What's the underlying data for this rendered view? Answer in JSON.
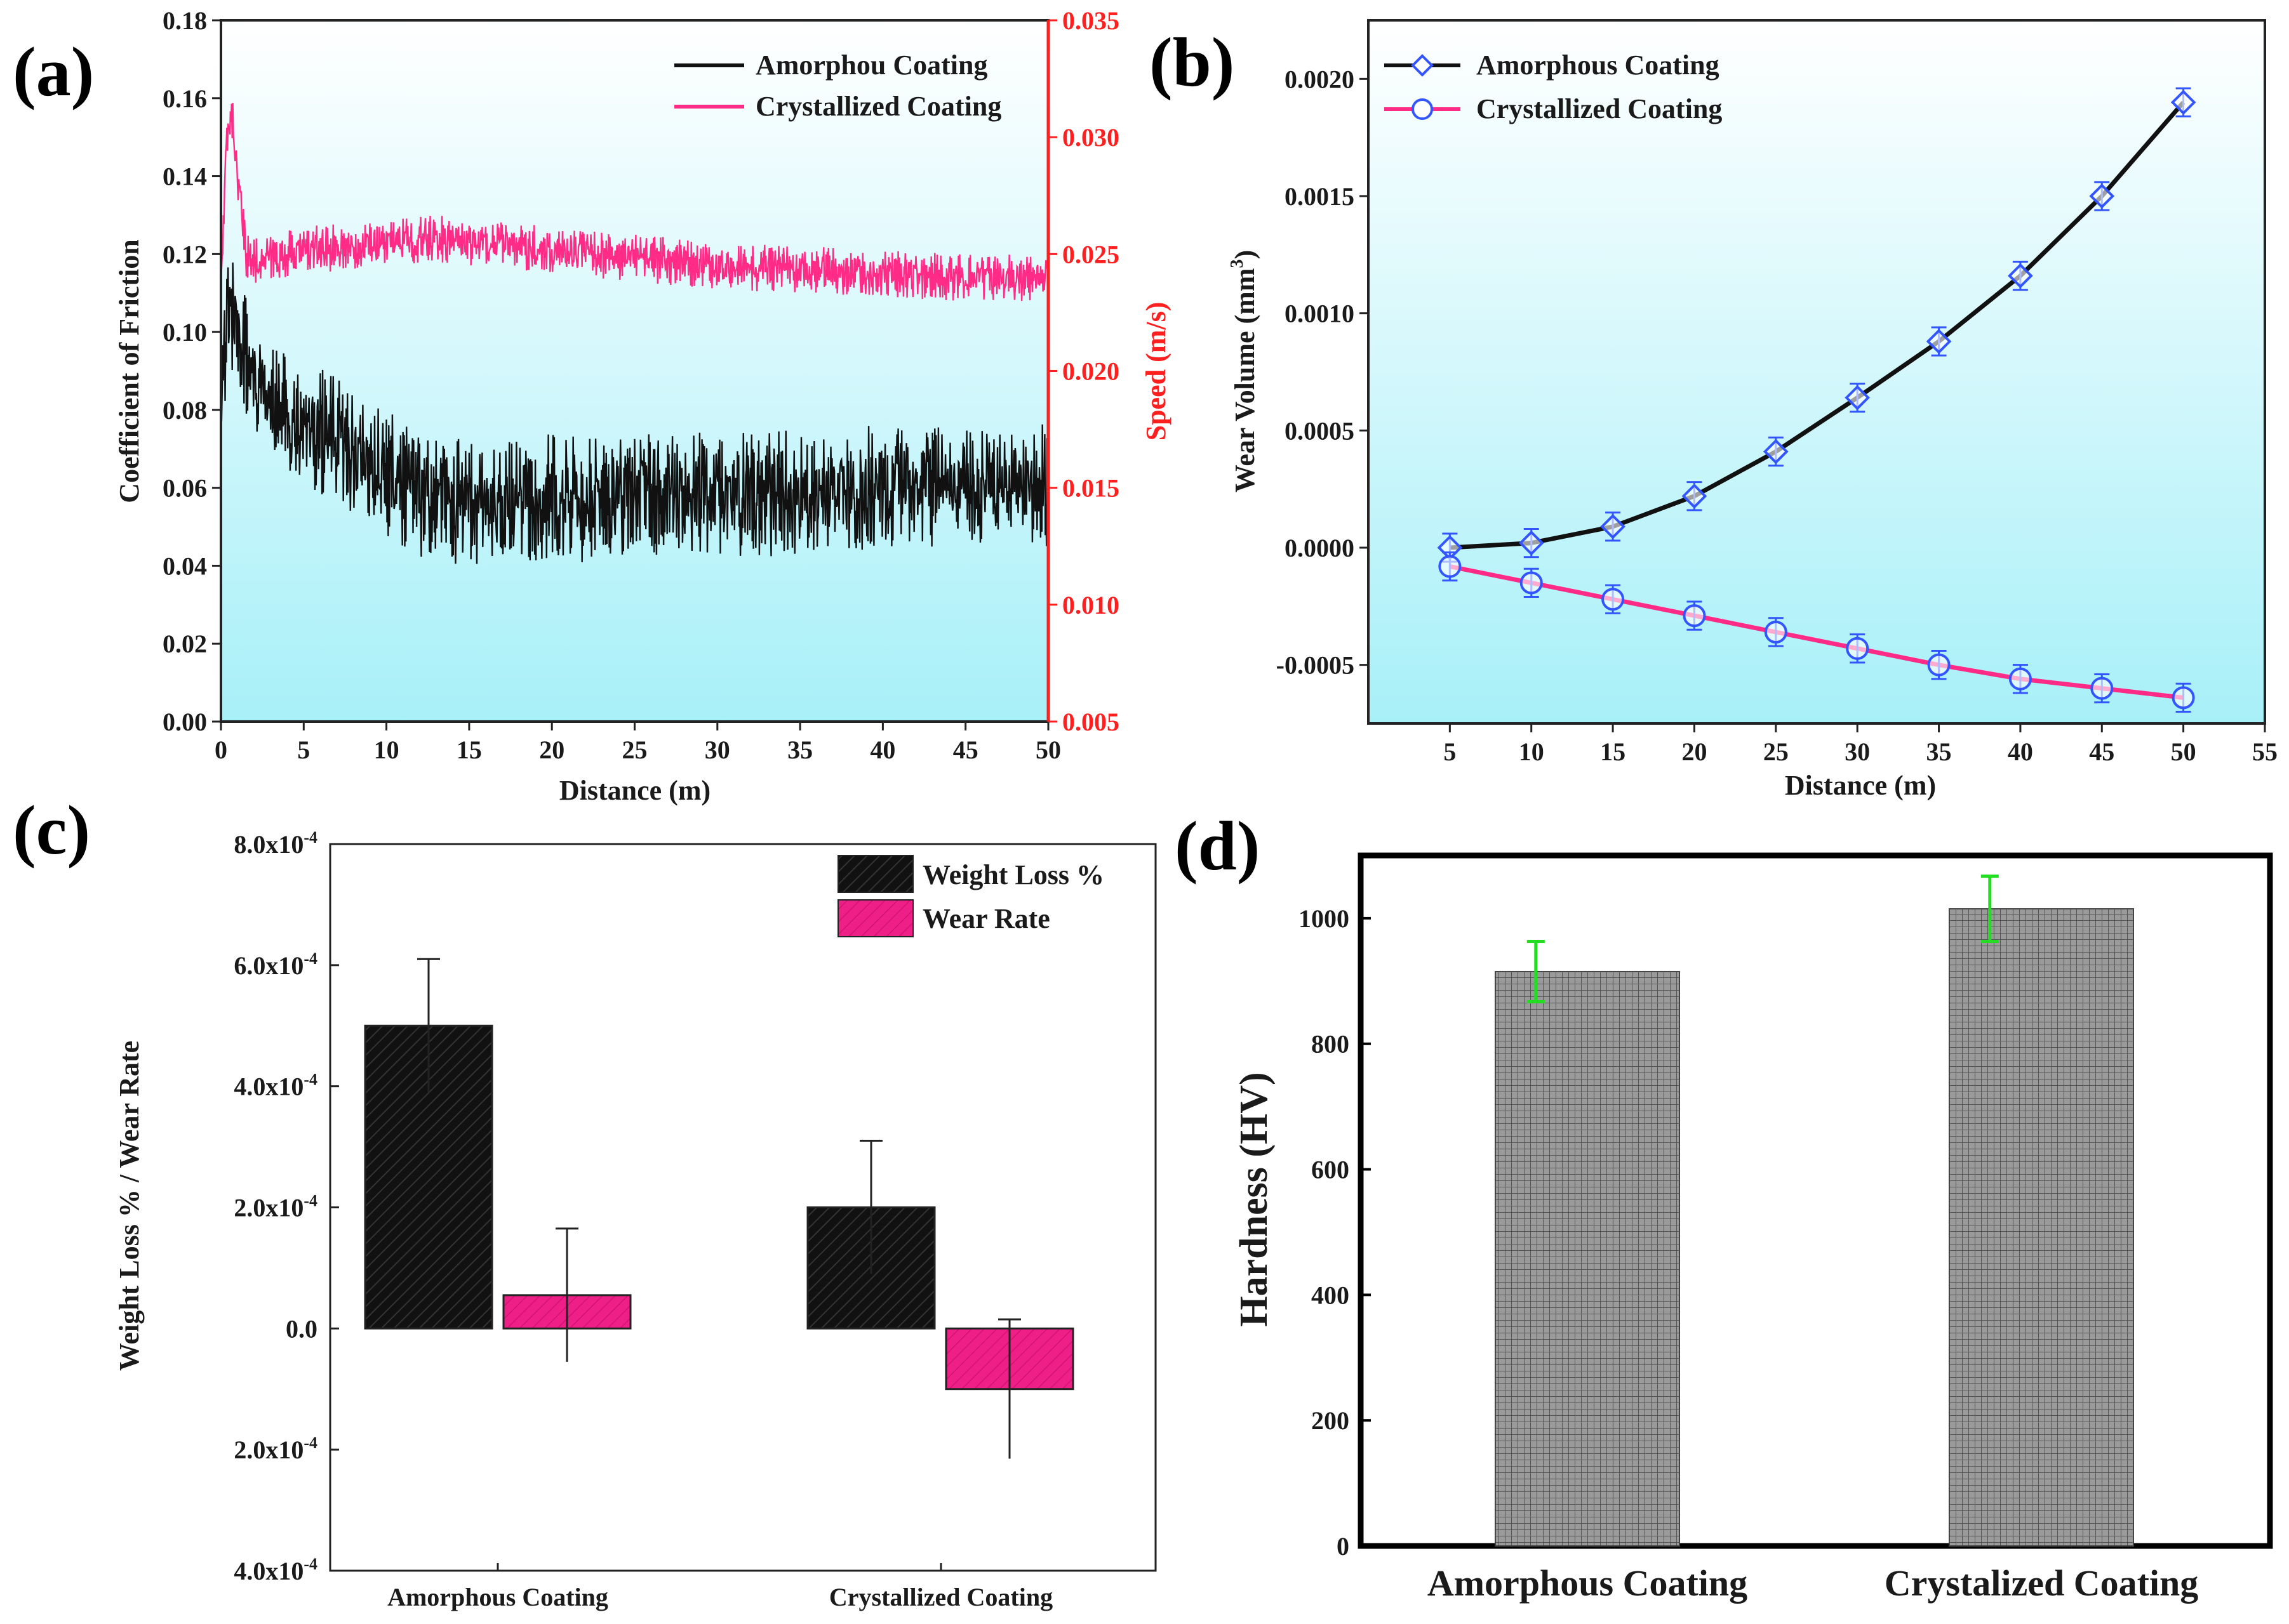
{
  "figure": {
    "panels": [
      "(a)",
      "(b)",
      "(c)",
      "(d)"
    ]
  },
  "chart_data": [
    {
      "panel": "(a)",
      "type": "line",
      "xlabel": "Distance (m)",
      "ylabel": "Coefficient of Friction",
      "y2label": "Speed (m/s)",
      "xlim": [
        0,
        50
      ],
      "ylim": [
        0,
        0.18
      ],
      "y2lim": [
        0.005,
        0.035
      ],
      "xticks": [
        "0",
        "5",
        "10",
        "15",
        "20",
        "25",
        "30",
        "35",
        "40",
        "45",
        "50"
      ],
      "yticks": [
        "0.00",
        "0.02",
        "0.04",
        "0.06",
        "0.08",
        "0.10",
        "0.12",
        "0.14",
        "0.16",
        "0.18"
      ],
      "y2ticks": [
        "0.005",
        "0.010",
        "0.015",
        "0.020",
        "0.025",
        "0.030",
        "0.035"
      ],
      "legend": [
        "Amorphou Coating",
        "Crystallized Coating"
      ],
      "series": [
        {
          "name": "Amorphou Coating",
          "color": "#111111",
          "x": [
            0,
            0.5,
            1,
            2,
            3,
            5,
            7,
            10,
            12,
            15,
            17,
            20,
            22,
            25,
            30,
            35,
            40,
            45,
            48,
            50
          ],
          "y": [
            0.09,
            0.105,
            0.1,
            0.088,
            0.08,
            0.077,
            0.072,
            0.064,
            0.058,
            0.056,
            0.056,
            0.058,
            0.057,
            0.059,
            0.058,
            0.059,
            0.06,
            0.06,
            0.061,
            0.06
          ],
          "noise": 0.012
        },
        {
          "name": "Crystallized Coating",
          "color": "#ff2b86",
          "x": [
            0,
            0.3,
            0.6,
            1,
            1.5,
            2,
            3,
            5,
            8,
            10,
            13,
            15,
            18,
            20,
            25,
            30,
            35,
            40,
            45,
            50
          ],
          "y": [
            0.11,
            0.145,
            0.158,
            0.14,
            0.12,
            0.118,
            0.119,
            0.121,
            0.122,
            0.123,
            0.124,
            0.123,
            0.122,
            0.121,
            0.119,
            0.117,
            0.116,
            0.115,
            0.114,
            0.114
          ],
          "noise": 0.0045
        }
      ]
    },
    {
      "panel": "(b)",
      "type": "line",
      "xlabel": "Distance (m)",
      "ylabel": "Wear Volume (mm",
      "ylabel_sup": "3",
      "ylabel_end": ")",
      "xlim": [
        0,
        55
      ],
      "ylim": [
        -0.00075,
        0.00225
      ],
      "xticks": [
        "5",
        "10",
        "15",
        "20",
        "25",
        "30",
        "35",
        "40",
        "45",
        "50",
        "55"
      ],
      "yticks": [
        "-0.0005",
        "0.0000",
        "0.0005",
        "0.0010",
        "0.0015",
        "0.0020"
      ],
      "legend": [
        "Amorphous Coating",
        "Crystallized Coating"
      ],
      "series": [
        {
          "name": "Amorphous Coating",
          "marker": "diamond",
          "color": "#111111",
          "x": [
            5,
            10,
            15,
            20,
            25,
            30,
            35,
            40,
            45,
            50
          ],
          "y": [
            0.0,
            2e-05,
            9e-05,
            0.00022,
            0.00041,
            0.00064,
            0.00088,
            0.00116,
            0.0015,
            0.0019
          ],
          "err": 6e-05
        },
        {
          "name": "Crystallized Coating",
          "marker": "circle",
          "color": "#ff2b86",
          "x": [
            5,
            10,
            15,
            20,
            25,
            30,
            35,
            40,
            45,
            50
          ],
          "y": [
            -8e-05,
            -0.00015,
            -0.00022,
            -0.00029,
            -0.00036,
            -0.00043,
            -0.0005,
            -0.00056,
            -0.0006,
            -0.00064
          ],
          "err": 6e-05
        }
      ]
    },
    {
      "panel": "(c)",
      "type": "bar",
      "ylabel": "Weight Loss % / Wear Rate",
      "categories": [
        "Amorphous Coating",
        "Crystallized Coating"
      ],
      "ylim": [
        -4.0,
        8.0
      ],
      "ytick_values": [
        -4,
        -2,
        0,
        2,
        4,
        6,
        8
      ],
      "ytick_mantissa": [
        "4.0x10",
        "2.0x10",
        "0.0",
        "2.0x10",
        "4.0x10",
        "6.0x10",
        "8.0x10"
      ],
      "ytick_exponent": [
        "-4",
        "-4",
        "",
        "-4",
        "-4",
        "-4",
        "-4"
      ],
      "legend": [
        "Weight Loss %",
        "Wear Rate"
      ],
      "series": [
        {
          "name": "Weight Loss %",
          "color": "#1a1a1a",
          "values": [
            5.0,
            2.0
          ],
          "err": [
            1.1,
            1.1
          ]
        },
        {
          "name": "Wear Rate",
          "color": "#ee1f86",
          "values": [
            0.55,
            -1.0
          ],
          "err": [
            1.1,
            1.15
          ]
        }
      ]
    },
    {
      "panel": "(d)",
      "type": "bar",
      "ylabel": "Hardness (HV)",
      "categories": [
        "Amorphous Coating",
        "Crystalized Coating"
      ],
      "ylim": [
        0,
        1100
      ],
      "yticks": [
        0,
        200,
        400,
        600,
        800,
        1000
      ],
      "values": [
        915,
        1015
      ],
      "err": [
        48,
        52
      ],
      "bar_color": "#8a8a8a",
      "err_color": "#22dd22"
    }
  ]
}
